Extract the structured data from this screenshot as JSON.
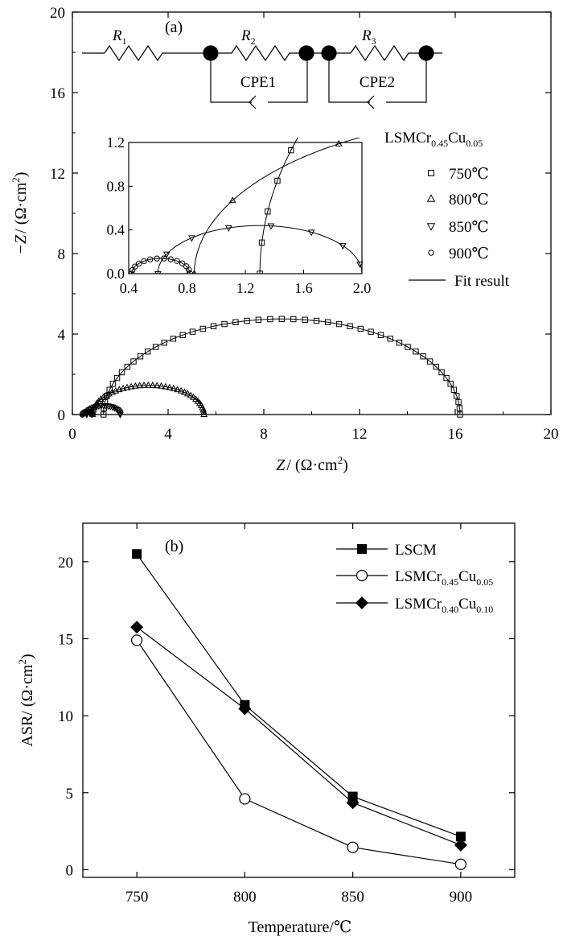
{
  "chart_data": [
    {
      "type": "scatter",
      "panel_label": "(a)",
      "xlabel": {
        "pre": "Z",
        "post": "/ (Ω·cm",
        "sup": "2",
        "end": ")"
      },
      "ylabel": {
        "pre": "−Z",
        "post": "/ (Ω·cm",
        "sup": "2",
        "end": ")"
      },
      "xlim": [
        0,
        20
      ],
      "ylim": [
        0,
        20
      ],
      "x_ticks": [
        0,
        4,
        8,
        12,
        16,
        20
      ],
      "y_ticks": [
        0,
        4,
        8,
        12,
        16,
        20
      ],
      "legend": {
        "title": {
          "base": "LSMCr",
          "s1": "0.45",
          "mid": "Cu",
          "s2": "0.05"
        },
        "placement": "right",
        "entries": [
          {
            "label": "750℃",
            "marker": "square"
          },
          {
            "label": "800℃",
            "marker": "triangle-up"
          },
          {
            "label": "850℃",
            "marker": "triangle-down"
          },
          {
            "label": "900℃",
            "marker": "circle"
          },
          {
            "label": "Fit result",
            "marker": "line"
          }
        ]
      },
      "circuit": {
        "r1": {
          "base": "R",
          "sub": "1"
        },
        "r2": {
          "base": "R",
          "sub": "2"
        },
        "r3": {
          "base": "R",
          "sub": "3"
        },
        "cpe1": "CPE1",
        "cpe2": "CPE2"
      },
      "series": [
        {
          "marker": "square",
          "arc": {
            "x0": 1.3,
            "x1": 16.2,
            "height": 4.75
          }
        },
        {
          "marker": "triangle-up",
          "arc": {
            "x0": 0.85,
            "x1": 5.5,
            "height": 1.45
          }
        },
        {
          "marker": "triangle-down",
          "arc": {
            "x0": 0.6,
            "x1": 2.0,
            "height": 0.44
          }
        },
        {
          "marker": "circle",
          "arc": {
            "x0": 0.42,
            "x1": 0.82,
            "height": 0.14
          }
        }
      ],
      "inset": {
        "xlim": [
          0.4,
          2.0
        ],
        "ylim": [
          0,
          1.2
        ],
        "x_ticks": [
          0.4,
          0.8,
          1.2,
          1.6,
          2.0
        ],
        "y_ticks": [
          0.0,
          0.4,
          0.8,
          1.2
        ],
        "x_tick_labels": [
          "0.4",
          "0.8",
          "1.2",
          "1.6",
          "2.0"
        ],
        "y_tick_labels": [
          "0.0",
          "0.4",
          "0.8",
          "1.2"
        ]
      }
    },
    {
      "type": "line",
      "panel_label": "(b)",
      "xlabel": "Temperature/℃",
      "ylabel": {
        "pre": "ASR/ (Ω·cm",
        "sup": "2",
        "end": ")"
      },
      "x": [
        750,
        800,
        850,
        900
      ],
      "xlim": [
        725,
        925
      ],
      "ylim": [
        -0.5,
        22.5
      ],
      "x_ticks": [
        750,
        800,
        850,
        900
      ],
      "y_ticks": [
        0,
        5,
        10,
        15,
        20
      ],
      "legend_placement": "top-right",
      "series": [
        {
          "name": {
            "base": "LSCM"
          },
          "marker": "filled-square",
          "values": [
            20.5,
            10.7,
            4.75,
            2.15
          ]
        },
        {
          "name": {
            "base": "LSMCr",
            "s1": "0.45",
            "mid": "Cu",
            "s2": "0.05"
          },
          "marker": "open-circle",
          "values": [
            14.9,
            4.6,
            1.45,
            0.35
          ]
        },
        {
          "name": {
            "base": "LSMCr",
            "s1": "0.40",
            "mid": "Cu",
            "s2": "0.10"
          },
          "marker": "filled-diamond",
          "values": [
            15.75,
            10.45,
            4.35,
            1.6
          ]
        }
      ]
    }
  ]
}
